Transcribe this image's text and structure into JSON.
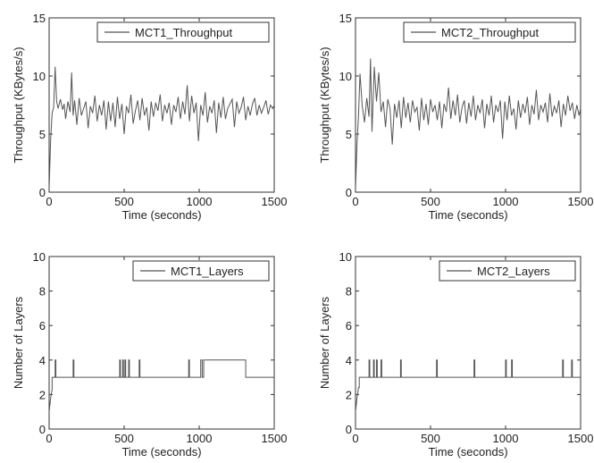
{
  "figure": {
    "panel_count": 4,
    "colors": {
      "line": "#555555",
      "axis": "#333333",
      "background": "#ffffff"
    }
  },
  "chart_data": [
    {
      "type": "line",
      "title": "",
      "xlabel": "Time (seconds)",
      "ylabel": "Throughput (KBytes/s)",
      "xlim": [
        0,
        1500
      ],
      "ylim": [
        0,
        15
      ],
      "xticks": [
        0,
        500,
        1000,
        1500
      ],
      "yticks": [
        0,
        5,
        10,
        15
      ],
      "legend": "top-right",
      "grid": false,
      "series": [
        {
          "name": "MCT1_Throughput",
          "x": [
            0,
            10,
            20,
            30,
            40,
            50,
            60,
            75,
            90,
            100,
            110,
            125,
            140,
            150,
            160,
            170,
            185,
            200,
            215,
            230,
            245,
            260,
            275,
            290,
            305,
            320,
            335,
            350,
            365,
            380,
            395,
            410,
            425,
            440,
            455,
            470,
            485,
            500,
            515,
            530,
            545,
            560,
            575,
            590,
            605,
            620,
            635,
            650,
            665,
            680,
            695,
            710,
            725,
            740,
            755,
            770,
            785,
            800,
            815,
            830,
            845,
            860,
            875,
            890,
            905,
            920,
            935,
            950,
            965,
            980,
            995,
            1010,
            1025,
            1040,
            1055,
            1070,
            1085,
            1100,
            1115,
            1130,
            1145,
            1160,
            1175,
            1190,
            1205,
            1220,
            1235,
            1250,
            1265,
            1280,
            1295,
            1310,
            1325,
            1340,
            1355,
            1370,
            1385,
            1400,
            1415,
            1430,
            1445,
            1460,
            1475,
            1490,
            1500
          ],
          "y": [
            0.3,
            4.5,
            6.8,
            7.3,
            10.8,
            7.8,
            7.2,
            8.0,
            7.1,
            7.6,
            6.3,
            7.8,
            6.9,
            10.3,
            6.6,
            7.9,
            5.8,
            8.1,
            6.6,
            7.2,
            7.8,
            5.5,
            7.4,
            6.8,
            8.3,
            6.1,
            7.5,
            6.6,
            7.9,
            5.4,
            7.8,
            6.1,
            7.7,
            5.6,
            8.2,
            6.3,
            7.6,
            5.0,
            7.4,
            6.8,
            8.4,
            5.9,
            7.0,
            7.9,
            6.2,
            8.1,
            6.6,
            7.3,
            5.3,
            7.8,
            6.5,
            7.7,
            7.0,
            8.4,
            6.1,
            7.5,
            6.8,
            7.7,
            5.8,
            7.5,
            6.9,
            8.2,
            6.3,
            7.8,
            6.7,
            9.2,
            6.1,
            8.3,
            6.8,
            7.7,
            4.4,
            7.5,
            6.6,
            8.6,
            6.0,
            7.4,
            6.8,
            7.9,
            5.1,
            7.7,
            6.4,
            8.2,
            6.3,
            7.2,
            7.6,
            8.0,
            5.6,
            7.8,
            6.8,
            7.3,
            8.2,
            6.2,
            7.4,
            6.6,
            7.6,
            8.1,
            6.6,
            7.5,
            6.8,
            7.3,
            7.9,
            6.7,
            7.5,
            7.2,
            7.5
          ]
        }
      ]
    },
    {
      "type": "line",
      "title": "",
      "xlabel": "Time (seconds)",
      "ylabel": "Throughput (KBytes/s)",
      "xlim": [
        0,
        1500
      ],
      "ylim": [
        0,
        15
      ],
      "xticks": [
        0,
        500,
        1000,
        1500
      ],
      "yticks": [
        0,
        5,
        10,
        15
      ],
      "legend": "top-right",
      "grid": false,
      "series": [
        {
          "name": "MCT2_Throughput",
          "x": [
            0,
            10,
            20,
            30,
            45,
            60,
            75,
            90,
            100,
            110,
            125,
            140,
            155,
            170,
            185,
            200,
            215,
            230,
            245,
            260,
            275,
            290,
            305,
            320,
            335,
            350,
            365,
            380,
            395,
            410,
            425,
            440,
            455,
            470,
            485,
            500,
            515,
            530,
            545,
            560,
            575,
            590,
            605,
            620,
            635,
            650,
            665,
            680,
            695,
            710,
            725,
            740,
            755,
            770,
            785,
            800,
            815,
            830,
            845,
            860,
            875,
            890,
            905,
            920,
            935,
            950,
            965,
            980,
            995,
            1010,
            1025,
            1040,
            1055,
            1070,
            1085,
            1100,
            1115,
            1130,
            1145,
            1160,
            1175,
            1190,
            1205,
            1220,
            1235,
            1250,
            1265,
            1280,
            1295,
            1310,
            1325,
            1340,
            1355,
            1370,
            1385,
            1400,
            1415,
            1430,
            1445,
            1460,
            1475,
            1490,
            1500
          ],
          "y": [
            0.2,
            4.2,
            6.6,
            10.2,
            7.4,
            6.0,
            8.1,
            6.5,
            11.5,
            5.2,
            10.8,
            7.8,
            10.3,
            6.9,
            7.8,
            5.6,
            8.0,
            7.2,
            4.1,
            7.6,
            6.4,
            7.9,
            5.5,
            8.2,
            6.4,
            7.7,
            6.0,
            7.9,
            6.9,
            7.3,
            5.3,
            8.1,
            6.2,
            7.6,
            5.8,
            8.0,
            6.9,
            7.5,
            6.2,
            7.8,
            5.5,
            7.6,
            6.9,
            9.0,
            6.3,
            7.9,
            6.6,
            8.4,
            6.0,
            7.3,
            7.9,
            5.9,
            7.7,
            6.5,
            8.3,
            6.2,
            7.5,
            6.8,
            8.0,
            5.5,
            7.6,
            6.6,
            8.3,
            6.0,
            7.5,
            6.9,
            7.9,
            4.6,
            7.8,
            6.2,
            8.3,
            6.6,
            7.2,
            5.4,
            7.9,
            6.4,
            7.6,
            6.8,
            8.2,
            5.8,
            7.5,
            6.7,
            8.8,
            6.2,
            7.5,
            6.9,
            7.7,
            6.0,
            8.5,
            6.5,
            7.4,
            6.8,
            7.9,
            5.6,
            7.6,
            6.6,
            8.3,
            7.0,
            7.7,
            6.3,
            7.5,
            6.6,
            7.2
          ]
        }
      ]
    },
    {
      "type": "line",
      "title": "",
      "xlabel": "Time (seconds)",
      "ylabel": "Number of Layers",
      "xlim": [
        0,
        1500
      ],
      "ylim": [
        0,
        10
      ],
      "xticks": [
        0,
        500,
        1000,
        1500
      ],
      "yticks": [
        0,
        2,
        4,
        6,
        8,
        10
      ],
      "legend": "top-right",
      "grid": false,
      "series": [
        {
          "name": "MCT1_Layers",
          "x": [
            0,
            10,
            20,
            20,
            40,
            40,
            45,
            45,
            160,
            160,
            165,
            165,
            470,
            470,
            475,
            475,
            490,
            490,
            495,
            495,
            505,
            505,
            510,
            510,
            530,
            530,
            535,
            535,
            600,
            600,
            605,
            605,
            930,
            930,
            935,
            935,
            1010,
            1010,
            1020,
            1020,
            1030,
            1030,
            1310,
            1310,
            1500
          ],
          "y": [
            1,
            1.8,
            2.3,
            3,
            3,
            4,
            4,
            3,
            3,
            4,
            4,
            3,
            3,
            4,
            4,
            3,
            3,
            4,
            4,
            3,
            3,
            4,
            4,
            3,
            3,
            4,
            4,
            3,
            3,
            4,
            4,
            3,
            3,
            4,
            4,
            3,
            3,
            4,
            4,
            3,
            3,
            4,
            4,
            3,
            3
          ]
        }
      ]
    },
    {
      "type": "line",
      "title": "",
      "xlabel": "Time (seconds)",
      "ylabel": "Number of Layers",
      "xlim": [
        0,
        1500
      ],
      "ylim": [
        0,
        10
      ],
      "xticks": [
        0,
        500,
        1000,
        1500
      ],
      "yticks": [
        0,
        2,
        4,
        6,
        8,
        10
      ],
      "legend": "top-right",
      "grid": false,
      "series": [
        {
          "name": "MCT2_Layers",
          "x": [
            0,
            10,
            20,
            25,
            25,
            90,
            90,
            95,
            95,
            120,
            120,
            125,
            125,
            140,
            140,
            145,
            145,
            170,
            170,
            175,
            175,
            300,
            300,
            305,
            305,
            540,
            540,
            545,
            545,
            790,
            790,
            795,
            795,
            1000,
            1000,
            1005,
            1005,
            1040,
            1040,
            1045,
            1045,
            1380,
            1380,
            1385,
            1385,
            1440,
            1440,
            1445,
            1445,
            1500
          ],
          "y": [
            1,
            1.8,
            2.4,
            2.4,
            3,
            3,
            4,
            4,
            3,
            3,
            4,
            4,
            3,
            3,
            4,
            4,
            3,
            3,
            4,
            4,
            3,
            3,
            4,
            4,
            3,
            3,
            4,
            4,
            3,
            3,
            4,
            4,
            3,
            3,
            4,
            4,
            3,
            3,
            4,
            4,
            3,
            3,
            4,
            4,
            3,
            3,
            4,
            4,
            3,
            3
          ]
        }
      ]
    }
  ]
}
